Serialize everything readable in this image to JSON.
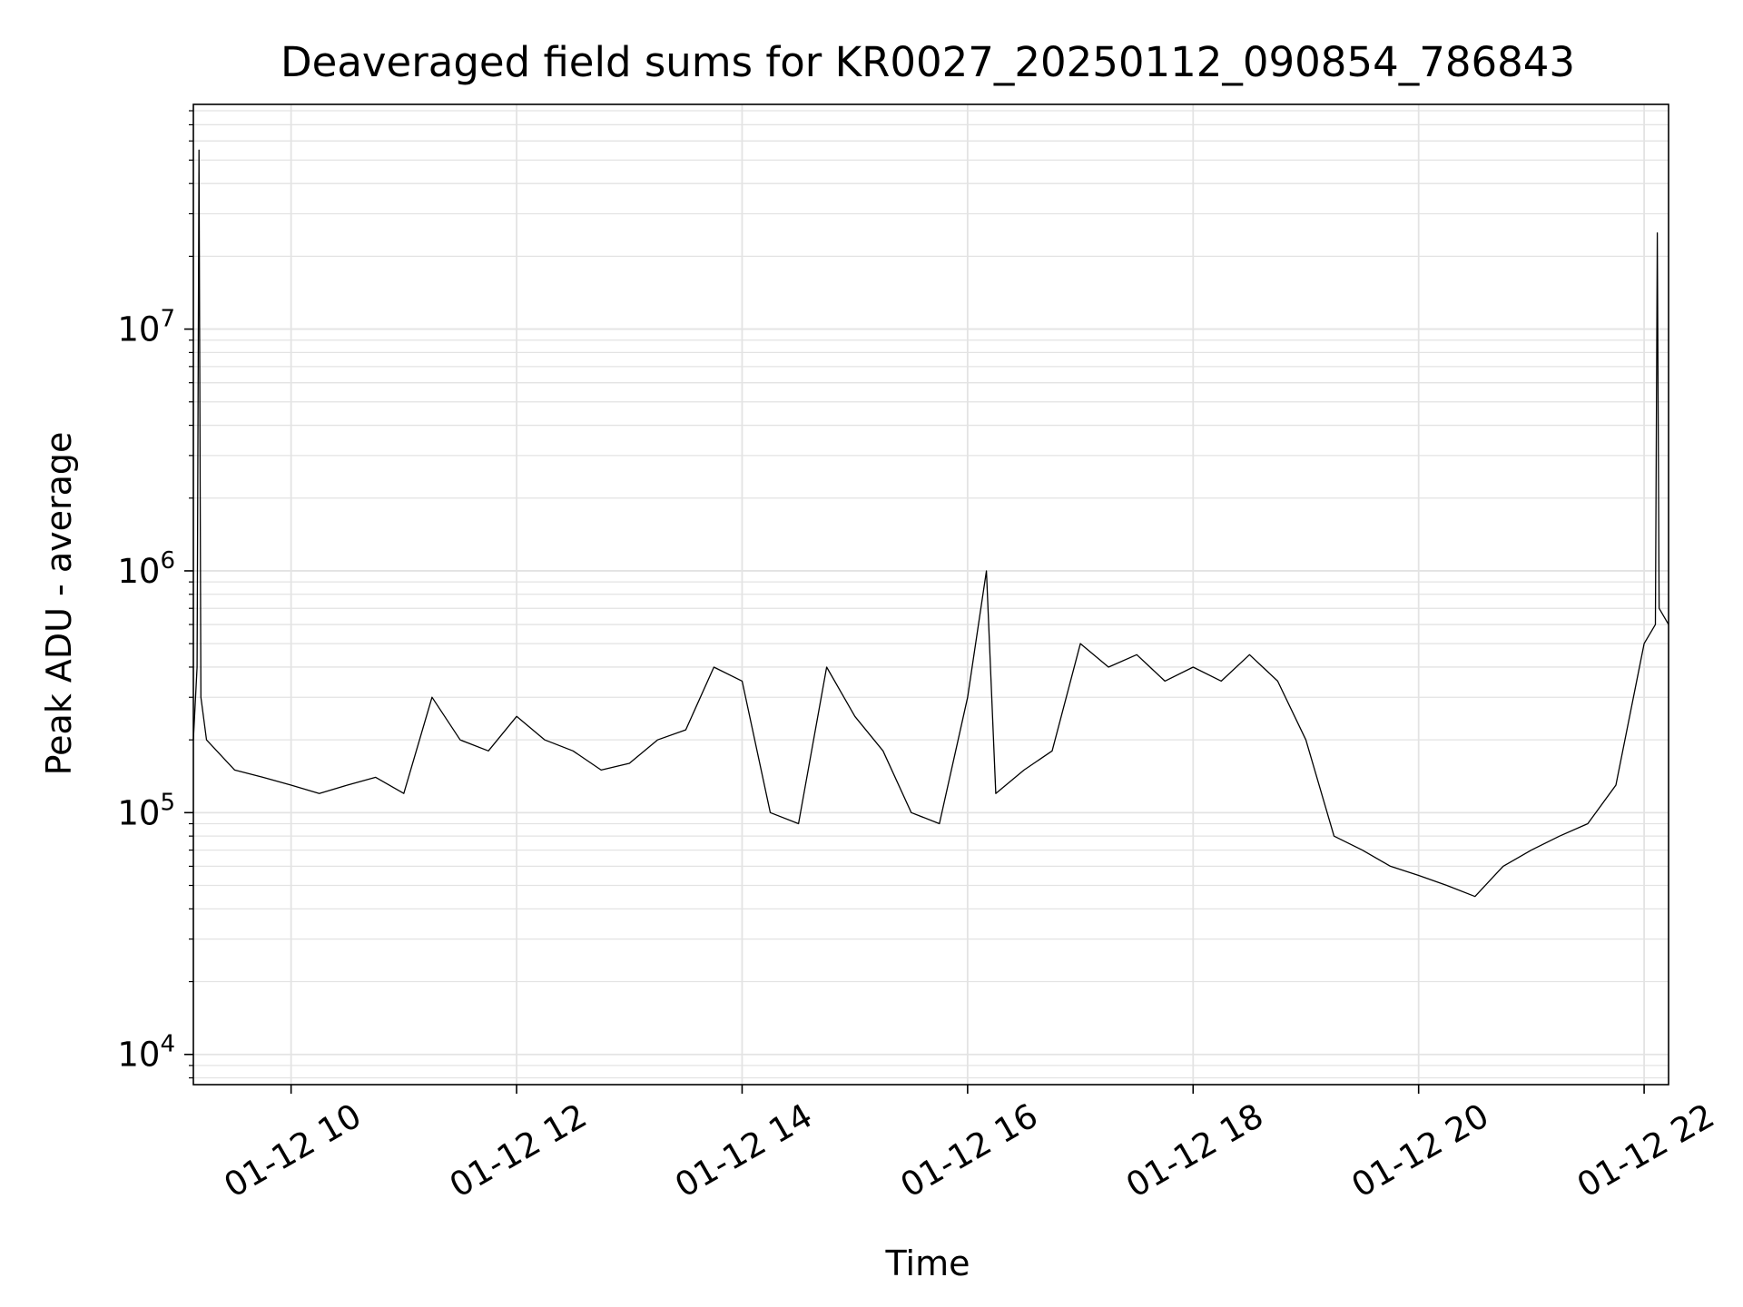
{
  "chart_data": {
    "type": "line",
    "title": "Deaveraged field sums for KR0027_20250112_090854_786843",
    "xlabel": "Time",
    "ylabel": "Peak ADU - average",
    "xlim": [
      "2025-01-12 09:08",
      "2025-01-12 22:13"
    ],
    "yscale": "log",
    "ylim": [
      7500,
      85000000
    ],
    "grid": true,
    "x_tick_labels": [
      "01-12 10",
      "01-12 12",
      "01-12 14",
      "01-12 16",
      "01-12 18",
      "01-12 20",
      "01-12 22"
    ],
    "y_tick_labels": [
      {
        "base": "10",
        "exp": "4"
      },
      {
        "base": "10",
        "exp": "5"
      },
      {
        "base": "10",
        "exp": "6"
      },
      {
        "base": "10",
        "exp": "7"
      }
    ],
    "series": [
      {
        "color": "#000000",
        "x": [
          "2025-01-12 09:08",
          "2025-01-12 09:10",
          "2025-01-12 09:11",
          "2025-01-12 09:12",
          "2025-01-12 09:15",
          "2025-01-12 09:30",
          "2025-01-12 09:45",
          "2025-01-12 10:00",
          "2025-01-12 10:15",
          "2025-01-12 10:30",
          "2025-01-12 10:45",
          "2025-01-12 11:00",
          "2025-01-12 11:15",
          "2025-01-12 11:30",
          "2025-01-12 11:45",
          "2025-01-12 12:00",
          "2025-01-12 12:15",
          "2025-01-12 12:30",
          "2025-01-12 12:45",
          "2025-01-12 13:00",
          "2025-01-12 13:15",
          "2025-01-12 13:30",
          "2025-01-12 13:45",
          "2025-01-12 14:00",
          "2025-01-12 14:15",
          "2025-01-12 14:30",
          "2025-01-12 14:45",
          "2025-01-12 15:00",
          "2025-01-12 15:15",
          "2025-01-12 15:30",
          "2025-01-12 15:45",
          "2025-01-12 16:00",
          "2025-01-12 16:10",
          "2025-01-12 16:15",
          "2025-01-12 16:30",
          "2025-01-12 16:45",
          "2025-01-12 17:00",
          "2025-01-12 17:15",
          "2025-01-12 17:30",
          "2025-01-12 17:45",
          "2025-01-12 18:00",
          "2025-01-12 18:15",
          "2025-01-12 18:30",
          "2025-01-12 18:45",
          "2025-01-12 19:00",
          "2025-01-12 19:15",
          "2025-01-12 19:30",
          "2025-01-12 19:45",
          "2025-01-12 20:00",
          "2025-01-12 20:15",
          "2025-01-12 20:30",
          "2025-01-12 20:45",
          "2025-01-12 21:00",
          "2025-01-12 21:15",
          "2025-01-12 21:30",
          "2025-01-12 21:45",
          "2025-01-12 22:00",
          "2025-01-12 22:06",
          "2025-01-12 22:07",
          "2025-01-12 22:08",
          "2025-01-12 22:13"
        ],
        "values": [
          200000,
          400000,
          55000000,
          300000,
          200000,
          150000,
          140000,
          130000,
          120000,
          130000,
          140000,
          120000,
          300000,
          200000,
          180000,
          250000,
          200000,
          180000,
          150000,
          160000,
          200000,
          220000,
          400000,
          350000,
          100000,
          90000,
          400000,
          250000,
          180000,
          100000,
          90000,
          300000,
          1000000,
          120000,
          150000,
          180000,
          500000,
          400000,
          450000,
          350000,
          400000,
          350000,
          450000,
          350000,
          200000,
          80000,
          70000,
          60000,
          55000,
          50000,
          45000,
          60000,
          70000,
          80000,
          90000,
          130000,
          500000,
          600000,
          25000000,
          700000,
          600000
        ]
      }
    ]
  }
}
